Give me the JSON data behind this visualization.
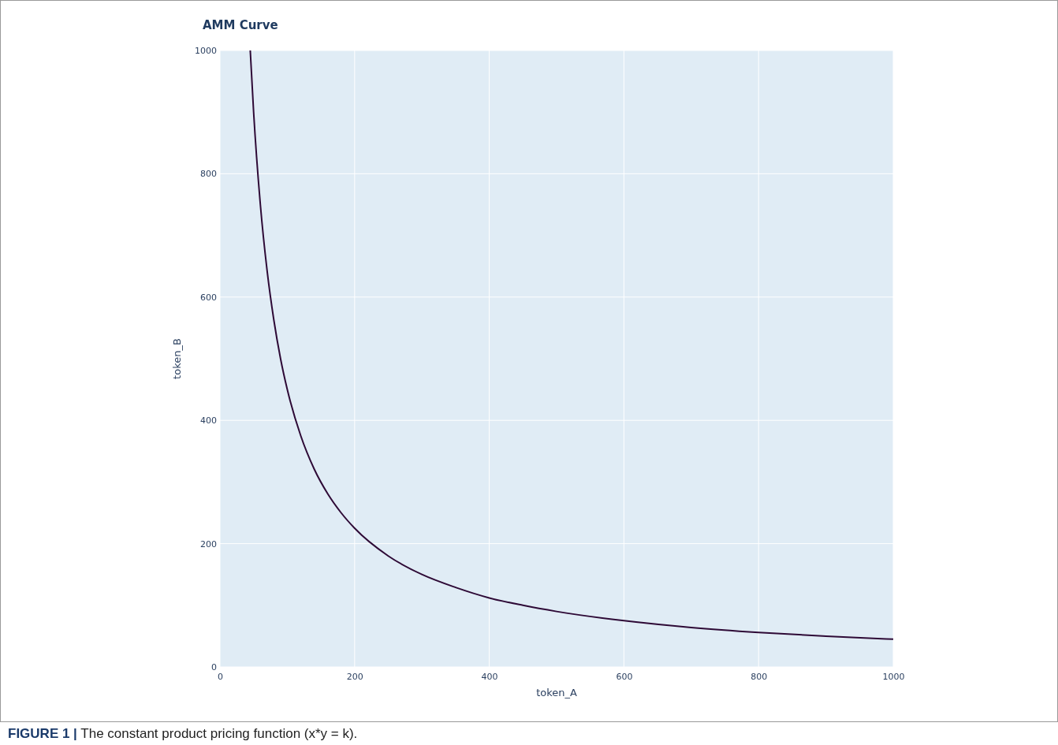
{
  "chart_data": {
    "type": "line",
    "title": "AMM Curve",
    "xlabel": "token_A",
    "ylabel": "token_B",
    "annotations": [
      "FIGURE 1 |",
      "The constant product pricing function (x*y = k)."
    ],
    "x": [
      45,
      50,
      60,
      70,
      80,
      90,
      100,
      120,
      140,
      160,
      180,
      200,
      250,
      300,
      350,
      400,
      450,
      500,
      600,
      700,
      800,
      900,
      1000
    ],
    "series": [
      {
        "color": "#2e0a36",
        "values": [
          1000,
          900,
          750,
          643,
          563,
          500,
          450,
          375,
          321,
          281,
          250,
          225,
          180,
          150,
          129,
          112,
          100,
          90,
          75,
          64,
          56,
          50,
          45
        ]
      }
    ],
    "xlim": [
      0,
      1000
    ],
    "ylim": [
      0,
      1000
    ],
    "xticks": [
      0,
      200,
      400,
      600,
      800,
      1000
    ],
    "yticks": [
      0,
      200,
      400,
      600,
      800,
      1000
    ],
    "grid": true,
    "marker": "none",
    "line_style": "solid"
  }
}
